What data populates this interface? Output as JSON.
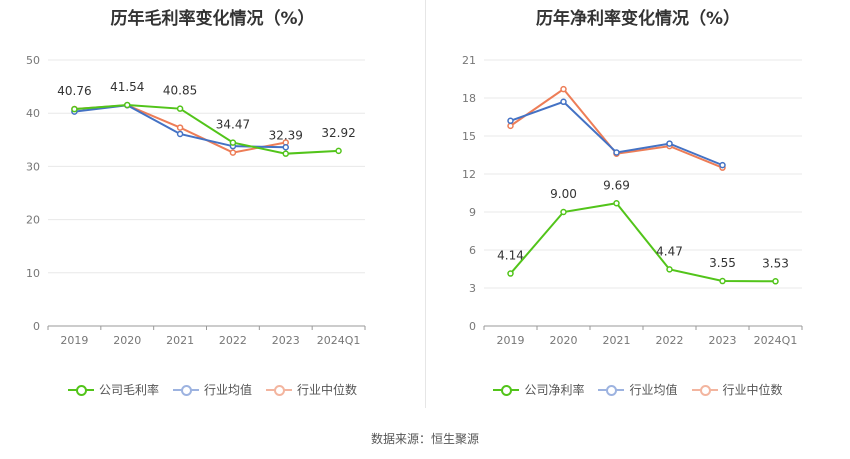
{
  "colors": {
    "company": "#52c41a",
    "industry_avg": "#4472c4",
    "industry_median": "#ed7d57"
  },
  "source": "数据来源：恒生聚源",
  "chart_data": [
    {
      "type": "line",
      "title": "历年毛利率变化情况（%）",
      "categories": [
        "2019",
        "2020",
        "2021",
        "2022",
        "2023",
        "2024Q1"
      ],
      "ylim": [
        0,
        50
      ],
      "yticks": [
        0,
        10,
        20,
        30,
        40,
        50
      ],
      "grid": true,
      "legend_position": "bottom",
      "series": [
        {
          "name": "公司毛利率",
          "key": "company",
          "values": [
            40.76,
            41.54,
            40.85,
            34.47,
            32.39,
            32.92
          ],
          "labels": [
            "40.76",
            "41.54",
            "40.85",
            "34.47",
            "32.39",
            "32.92"
          ]
        },
        {
          "name": "行业均值",
          "key": "industry_avg",
          "values": [
            40.3,
            41.5,
            36.1,
            33.8,
            33.6,
            null
          ]
        },
        {
          "name": "行业中位数",
          "key": "industry_median",
          "values": [
            40.8,
            41.5,
            37.3,
            32.6,
            34.5,
            null
          ]
        }
      ]
    },
    {
      "type": "line",
      "title": "历年净利率变化情况（%）",
      "categories": [
        "2019",
        "2020",
        "2021",
        "2022",
        "2023",
        "2024Q1"
      ],
      "ylim": [
        0,
        21
      ],
      "yticks": [
        0,
        3,
        6,
        9,
        12,
        15,
        18,
        21
      ],
      "grid": true,
      "legend_position": "bottom",
      "series": [
        {
          "name": "公司净利率",
          "key": "company",
          "values": [
            4.14,
            9.0,
            9.69,
            4.47,
            3.55,
            3.53
          ],
          "labels": [
            "4.14",
            "9.00",
            "9.69",
            "4.47",
            "3.55",
            "3.53"
          ]
        },
        {
          "name": "行业均值",
          "key": "industry_avg",
          "values": [
            16.2,
            17.7,
            13.7,
            14.4,
            12.7,
            null
          ]
        },
        {
          "name": "行业中位数",
          "key": "industry_median",
          "values": [
            15.8,
            18.7,
            13.6,
            14.2,
            12.5,
            null
          ]
        }
      ]
    }
  ]
}
